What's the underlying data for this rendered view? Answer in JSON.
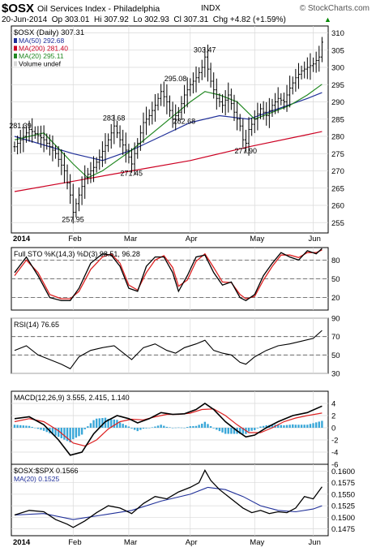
{
  "header": {
    "symbol": "$OSX",
    "name": "Oil Services Index - Philadelphia",
    "exchange": "INDX",
    "credit": "© StockCharts.com",
    "quote": "20-Jun-2014  Op 303.01  Hi 307.92  Lo 302.93  Cl 307.31  Chg +4.82 (+1.59%)",
    "quote_arrow": "▲"
  },
  "colors": {
    "price": "#000000",
    "ma50": "#1f2f99",
    "ma200": "#cc0022",
    "ma20": "#228822",
    "sto_k": "#000000",
    "sto_d": "#dd2222",
    "macd": "#000000",
    "signal": "#dd2222",
    "hist": "#3aa7d8",
    "ratio": "#000000",
    "ratio_ma": "#1f2f99",
    "grid": "#d9d9d9"
  },
  "chart_data": [
    {
      "type": "ohlc",
      "title": "$OSX (Daily) 307.31",
      "legend": [
        {
          "name": "MA(50) 292.68",
          "color_key": "ma50"
        },
        {
          "name": "MA(200) 281.40",
          "color_key": "ma200"
        },
        {
          "name": "MA(20) 295.11",
          "color_key": "ma20"
        },
        {
          "name": "Volume undef",
          "color_key": "grid"
        }
      ],
      "ylim": [
        252,
        312
      ],
      "yticks": [
        255,
        260,
        265,
        270,
        275,
        280,
        285,
        290,
        295,
        300,
        305,
        310
      ],
      "x_month_labels": [
        {
          "label": "2014",
          "bold": true,
          "x": 0
        },
        {
          "label": "Feb",
          "x": 20
        },
        {
          "label": "Mar",
          "x": 39
        },
        {
          "label": "Apr",
          "x": 60
        },
        {
          "label": "May",
          "x": 82
        },
        {
          "label": "Jun",
          "x": 102
        }
      ],
      "closes_key_points": [
        [
          0,
          277
        ],
        [
          5,
          282
        ],
        [
          10,
          279
        ],
        [
          14,
          275
        ],
        [
          17,
          270
        ],
        [
          19,
          263
        ],
        [
          20,
          258
        ],
        [
          22,
          263
        ],
        [
          24,
          268
        ],
        [
          27,
          271
        ],
        [
          29,
          274
        ],
        [
          32,
          279
        ],
        [
          34,
          283
        ],
        [
          36,
          279
        ],
        [
          38,
          276
        ],
        [
          40,
          272
        ],
        [
          42,
          278
        ],
        [
          44,
          284
        ],
        [
          46,
          286
        ],
        [
          48,
          289
        ],
        [
          50,
          293
        ],
        [
          52,
          290
        ],
        [
          54,
          285
        ],
        [
          56,
          287
        ],
        [
          58,
          292
        ],
        [
          60,
          295
        ],
        [
          62,
          297
        ],
        [
          64,
          300
        ],
        [
          65,
          303
        ],
        [
          67,
          296
        ],
        [
          69,
          291
        ],
        [
          71,
          289
        ],
        [
          73,
          292
        ],
        [
          75,
          287
        ],
        [
          77,
          283
        ],
        [
          78,
          279
        ],
        [
          79,
          278
        ],
        [
          80,
          282
        ],
        [
          82,
          285
        ],
        [
          84,
          288
        ],
        [
          86,
          286
        ],
        [
          88,
          289
        ],
        [
          90,
          291
        ],
        [
          92,
          290
        ],
        [
          94,
          294
        ],
        [
          96,
          297
        ],
        [
          98,
          299
        ],
        [
          100,
          300
        ],
        [
          102,
          301
        ],
        [
          104,
          303
        ],
        [
          105,
          307.31
        ]
      ],
      "ma50": [
        [
          0,
          280
        ],
        [
          20,
          275
        ],
        [
          30,
          273
        ],
        [
          40,
          276
        ],
        [
          50,
          280
        ],
        [
          60,
          284
        ],
        [
          70,
          286
        ],
        [
          80,
          285
        ],
        [
          90,
          288
        ],
        [
          100,
          291
        ],
        [
          105,
          292.68
        ]
      ],
      "ma200": [
        [
          0,
          264
        ],
        [
          20,
          267
        ],
        [
          40,
          270
        ],
        [
          60,
          273
        ],
        [
          80,
          277
        ],
        [
          100,
          280.5
        ],
        [
          105,
          281.4
        ]
      ],
      "ma20": [
        [
          0,
          279
        ],
        [
          10,
          281
        ],
        [
          20,
          272
        ],
        [
          25,
          268
        ],
        [
          30,
          270
        ],
        [
          40,
          276
        ],
        [
          50,
          283
        ],
        [
          60,
          290
        ],
        [
          65,
          293
        ],
        [
          70,
          292
        ],
        [
          76,
          290
        ],
        [
          82,
          285
        ],
        [
          88,
          287
        ],
        [
          94,
          289
        ],
        [
          100,
          292
        ],
        [
          105,
          295.11
        ]
      ],
      "annotations": [
        {
          "x": 2,
          "y": 281.39,
          "label": "281.39"
        },
        {
          "x": 20,
          "y": 257.95,
          "label": "257.95"
        },
        {
          "x": 34,
          "y": 283.68,
          "label": "283.68"
        },
        {
          "x": 40,
          "y": 271.45,
          "label": "271.45"
        },
        {
          "x": 55,
          "y": 295.08,
          "label": "295.08"
        },
        {
          "x": 58,
          "y": 282.68,
          "label": "282.68"
        },
        {
          "x": 65,
          "y": 303.47,
          "label": "303.47"
        },
        {
          "x": 79,
          "y": 277.9,
          "label": "277.90"
        }
      ]
    },
    {
      "type": "line",
      "title": "Full STO %K(14,3) %D(3) 98.51, 96.28",
      "ylim": [
        0,
        100
      ],
      "yticks": [
        20,
        50,
        80
      ],
      "k": [
        [
          0,
          60
        ],
        [
          4,
          85
        ],
        [
          8,
          55
        ],
        [
          12,
          20
        ],
        [
          16,
          15
        ],
        [
          19,
          15
        ],
        [
          22,
          35
        ],
        [
          26,
          75
        ],
        [
          30,
          90
        ],
        [
          33,
          88
        ],
        [
          36,
          70
        ],
        [
          39,
          35
        ],
        [
          42,
          30
        ],
        [
          45,
          70
        ],
        [
          48,
          85
        ],
        [
          51,
          85
        ],
        [
          54,
          60
        ],
        [
          56,
          30
        ],
        [
          59,
          55
        ],
        [
          62,
          85
        ],
        [
          65,
          88
        ],
        [
          68,
          60
        ],
        [
          71,
          40
        ],
        [
          74,
          45
        ],
        [
          77,
          20
        ],
        [
          79,
          15
        ],
        [
          82,
          25
        ],
        [
          85,
          55
        ],
        [
          88,
          75
        ],
        [
          91,
          92
        ],
        [
          94,
          85
        ],
        [
          97,
          80
        ],
        [
          100,
          95
        ],
        [
          103,
          90
        ],
        [
          105,
          98.51
        ]
      ],
      "d": [
        [
          0,
          55
        ],
        [
          4,
          80
        ],
        [
          8,
          60
        ],
        [
          12,
          25
        ],
        [
          16,
          18
        ],
        [
          19,
          18
        ],
        [
          22,
          30
        ],
        [
          26,
          65
        ],
        [
          30,
          85
        ],
        [
          33,
          90
        ],
        [
          36,
          75
        ],
        [
          39,
          40
        ],
        [
          42,
          32
        ],
        [
          45,
          60
        ],
        [
          48,
          80
        ],
        [
          51,
          87
        ],
        [
          54,
          68
        ],
        [
          56,
          38
        ],
        [
          59,
          48
        ],
        [
          62,
          78
        ],
        [
          65,
          90
        ],
        [
          68,
          68
        ],
        [
          71,
          45
        ],
        [
          74,
          44
        ],
        [
          77,
          25
        ],
        [
          79,
          18
        ],
        [
          82,
          22
        ],
        [
          85,
          48
        ],
        [
          88,
          70
        ],
        [
          91,
          88
        ],
        [
          94,
          88
        ],
        [
          97,
          84
        ],
        [
          100,
          92
        ],
        [
          103,
          92
        ],
        [
          105,
          96.28
        ]
      ]
    },
    {
      "type": "line",
      "title": "RSI(14) 76.65",
      "ylim": [
        30,
        90
      ],
      "yticks": [
        30,
        50,
        70,
        90
      ],
      "ref": [
        50,
        70
      ],
      "values": [
        [
          0,
          55
        ],
        [
          4,
          60
        ],
        [
          8,
          50
        ],
        [
          12,
          45
        ],
        [
          16,
          40
        ],
        [
          19,
          35
        ],
        [
          22,
          48
        ],
        [
          26,
          55
        ],
        [
          30,
          58
        ],
        [
          34,
          60
        ],
        [
          38,
          50
        ],
        [
          40,
          45
        ],
        [
          44,
          58
        ],
        [
          48,
          62
        ],
        [
          52,
          55
        ],
        [
          55,
          52
        ],
        [
          58,
          58
        ],
        [
          62,
          62
        ],
        [
          65,
          66
        ],
        [
          68,
          55
        ],
        [
          71,
          52
        ],
        [
          74,
          50
        ],
        [
          77,
          42
        ],
        [
          79,
          40
        ],
        [
          82,
          48
        ],
        [
          86,
          55
        ],
        [
          90,
          60
        ],
        [
          94,
          62
        ],
        [
          98,
          65
        ],
        [
          102,
          68
        ],
        [
          105,
          76.65
        ]
      ]
    },
    {
      "type": "bar-line",
      "title": "MACD(12,26,9) 3.555, 2.415, 1.140",
      "ylim": [
        -6,
        6
      ],
      "yticks": [
        -6,
        -4,
        -2,
        0,
        2,
        4
      ],
      "macd": [
        [
          0,
          1.5
        ],
        [
          5,
          1.8
        ],
        [
          10,
          0.5
        ],
        [
          15,
          -2
        ],
        [
          19,
          -4.5
        ],
        [
          23,
          -4
        ],
        [
          27,
          -1
        ],
        [
          31,
          1
        ],
        [
          35,
          2
        ],
        [
          39,
          1.5
        ],
        [
          42,
          0.8
        ],
        [
          46,
          1.5
        ],
        [
          50,
          2.5
        ],
        [
          54,
          2.2
        ],
        [
          58,
          2.3
        ],
        [
          62,
          3
        ],
        [
          65,
          4
        ],
        [
          68,
          3
        ],
        [
          72,
          1
        ],
        [
          76,
          -0.5
        ],
        [
          79,
          -1.5
        ],
        [
          82,
          -1.2
        ],
        [
          86,
          0
        ],
        [
          90,
          1
        ],
        [
          95,
          2
        ],
        [
          100,
          2.5
        ],
        [
          105,
          3.555
        ]
      ],
      "signal": [
        [
          0,
          1
        ],
        [
          5,
          1.5
        ],
        [
          10,
          1
        ],
        [
          15,
          -0.5
        ],
        [
          20,
          -2.5
        ],
        [
          24,
          -3
        ],
        [
          28,
          -2
        ],
        [
          32,
          -0.2
        ],
        [
          36,
          1
        ],
        [
          40,
          1.4
        ],
        [
          44,
          1.3
        ],
        [
          48,
          1.8
        ],
        [
          52,
          2.2
        ],
        [
          56,
          2.2
        ],
        [
          60,
          2.4
        ],
        [
          64,
          3
        ],
        [
          68,
          3.1
        ],
        [
          72,
          2
        ],
        [
          76,
          0.5
        ],
        [
          80,
          -0.8
        ],
        [
          84,
          -0.8
        ],
        [
          88,
          0
        ],
        [
          92,
          1
        ],
        [
          96,
          1.6
        ],
        [
          100,
          2
        ],
        [
          105,
          2.415
        ]
      ]
    },
    {
      "type": "line",
      "title": "$OSX:$SPX 0.1566",
      "legend": [
        {
          "name": "MA(20) 0.1525",
          "color_key": "ratio_ma"
        }
      ],
      "ylim": [
        0.146,
        0.1615
      ],
      "yticks": [
        0.1475,
        0.15,
        0.1525,
        0.155,
        0.1575,
        0.16
      ],
      "x_month_labels": [
        {
          "label": "2014",
          "bold": true,
          "x": 0
        },
        {
          "label": "Feb",
          "x": 20
        },
        {
          "label": "Mar",
          "x": 39
        },
        {
          "label": "Apr",
          "x": 60
        },
        {
          "label": "May",
          "x": 82
        },
        {
          "label": "Jun",
          "x": 102
        }
      ],
      "ratio": [
        [
          0,
          0.1505
        ],
        [
          5,
          0.1515
        ],
        [
          10,
          0.1512
        ],
        [
          14,
          0.1495
        ],
        [
          18,
          0.1485
        ],
        [
          20,
          0.1478
        ],
        [
          24,
          0.1492
        ],
        [
          28,
          0.151
        ],
        [
          32,
          0.1525
        ],
        [
          36,
          0.152
        ],
        [
          40,
          0.1508
        ],
        [
          44,
          0.153
        ],
        [
          48,
          0.1545
        ],
        [
          52,
          0.154
        ],
        [
          56,
          0.1555
        ],
        [
          60,
          0.1565
        ],
        [
          63,
          0.1575
        ],
        [
          65,
          0.1602
        ],
        [
          67,
          0.158
        ],
        [
          70,
          0.156
        ],
        [
          74,
          0.154
        ],
        [
          78,
          0.152
        ],
        [
          81,
          0.151
        ],
        [
          84,
          0.1515
        ],
        [
          87,
          0.1508
        ],
        [
          90,
          0.1512
        ],
        [
          93,
          0.151
        ],
        [
          96,
          0.152
        ],
        [
          99,
          0.1545
        ],
        [
          102,
          0.154
        ],
        [
          105,
          0.1566
        ]
      ],
      "ratio_ma": [
        [
          0,
          0.1505
        ],
        [
          10,
          0.1508
        ],
        [
          20,
          0.1495
        ],
        [
          30,
          0.1505
        ],
        [
          40,
          0.1515
        ],
        [
          50,
          0.1535
        ],
        [
          60,
          0.155
        ],
        [
          66,
          0.1565
        ],
        [
          72,
          0.156
        ],
        [
          78,
          0.1545
        ],
        [
          84,
          0.1525
        ],
        [
          90,
          0.1515
        ],
        [
          96,
          0.1512
        ],
        [
          102,
          0.1518
        ],
        [
          105,
          0.1525
        ]
      ]
    }
  ]
}
